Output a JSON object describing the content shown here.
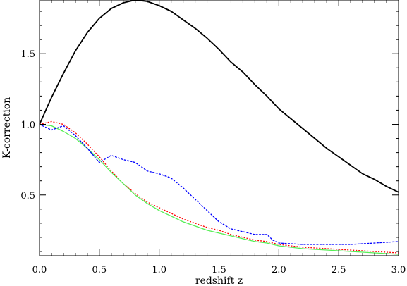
{
  "chart_data": {
    "type": "line",
    "title": "",
    "xlabel": "redshift z",
    "ylabel": "K-correction",
    "xlim": [
      0.0,
      3.0
    ],
    "ylim": [
      0.07,
      1.88
    ],
    "xticks": [
      0.0,
      0.5,
      1.0,
      1.5,
      2.0,
      2.5,
      3.0
    ],
    "xtick_labels": [
      "0.0",
      "0.5",
      "1.0",
      "1.5",
      "2.0",
      "2.5",
      "3.0"
    ],
    "yticks": [
      0.5,
      1.0,
      1.5
    ],
    "ytick_labels": [
      "0.5",
      "1.0",
      "1.5"
    ],
    "grid": false,
    "legend": "none",
    "series": [
      {
        "color": "#000000",
        "style": "solid",
        "x": [
          0.0,
          0.1,
          0.2,
          0.3,
          0.4,
          0.5,
          0.6,
          0.7,
          0.8,
          0.9,
          1.0,
          1.1,
          1.2,
          1.3,
          1.4,
          1.5,
          1.6,
          1.7,
          1.8,
          1.9,
          2.0,
          2.1,
          2.2,
          2.3,
          2.4,
          2.5,
          2.6,
          2.7,
          2.8,
          2.9,
          3.0
        ],
        "y": [
          1.0,
          1.19,
          1.36,
          1.52,
          1.65,
          1.75,
          1.82,
          1.86,
          1.88,
          1.87,
          1.84,
          1.8,
          1.74,
          1.68,
          1.61,
          1.53,
          1.44,
          1.37,
          1.28,
          1.2,
          1.11,
          1.04,
          0.97,
          0.9,
          0.83,
          0.77,
          0.71,
          0.65,
          0.61,
          0.56,
          0.52
        ]
      },
      {
        "color": "#ff0000",
        "style": "dotted",
        "x": [
          0.0,
          0.1,
          0.2,
          0.3,
          0.4,
          0.5,
          0.6,
          0.7,
          0.8,
          0.9,
          1.0,
          1.1,
          1.2,
          1.3,
          1.4,
          1.5,
          1.6,
          1.7,
          1.8,
          1.9,
          2.0,
          2.2,
          2.4,
          2.6,
          2.8,
          3.0
        ],
        "y": [
          1.0,
          1.02,
          1.0,
          0.94,
          0.86,
          0.77,
          0.67,
          0.58,
          0.51,
          0.45,
          0.41,
          0.37,
          0.33,
          0.3,
          0.27,
          0.25,
          0.22,
          0.2,
          0.18,
          0.17,
          0.15,
          0.13,
          0.12,
          0.11,
          0.1,
          0.09
        ]
      },
      {
        "color": "#55ee55",
        "style": "solid",
        "x": [
          0.0,
          0.1,
          0.2,
          0.3,
          0.4,
          0.5,
          0.6,
          0.7,
          0.8,
          0.9,
          1.0,
          1.1,
          1.2,
          1.3,
          1.4,
          1.5,
          1.6,
          1.7,
          1.8,
          1.9,
          2.0,
          2.2,
          2.4,
          2.6,
          2.8,
          3.0
        ],
        "y": [
          1.0,
          0.99,
          0.95,
          0.9,
          0.83,
          0.75,
          0.66,
          0.58,
          0.5,
          0.44,
          0.39,
          0.35,
          0.31,
          0.28,
          0.25,
          0.23,
          0.21,
          0.19,
          0.17,
          0.16,
          0.14,
          0.12,
          0.11,
          0.1,
          0.09,
          0.08
        ]
      },
      {
        "color": "#0000ff",
        "style": "dashed",
        "x": [
          0.0,
          0.1,
          0.2,
          0.3,
          0.4,
          0.5,
          0.6,
          0.7,
          0.8,
          0.9,
          1.0,
          1.1,
          1.2,
          1.3,
          1.4,
          1.5,
          1.6,
          1.7,
          1.8,
          1.9,
          1.95,
          2.0,
          2.2,
          2.4,
          2.6,
          2.8,
          3.0
        ],
        "y": [
          1.0,
          0.96,
          0.99,
          0.92,
          0.83,
          0.73,
          0.78,
          0.75,
          0.73,
          0.67,
          0.65,
          0.62,
          0.55,
          0.47,
          0.39,
          0.31,
          0.26,
          0.24,
          0.22,
          0.22,
          0.18,
          0.16,
          0.15,
          0.15,
          0.15,
          0.16,
          0.17
        ]
      }
    ]
  }
}
